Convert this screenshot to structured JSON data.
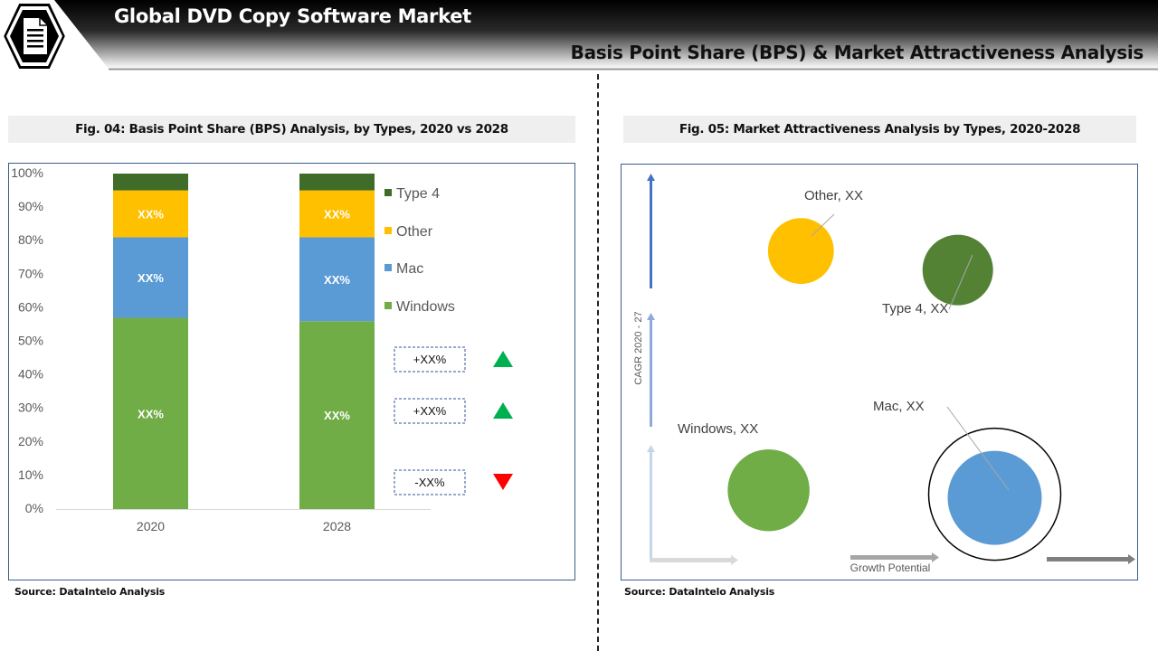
{
  "header": {
    "title": "Global DVD Copy Software Market",
    "subtitle": "Basis Point Share (BPS) & Market Attractiveness Analysis",
    "logo_icon": "document-icon"
  },
  "left": {
    "fig_title": "Fig. 04: Basis Point Share (BPS) Analysis, by Types, 2020 vs 2028",
    "source": "Source:  DataIntelo  Analysis"
  },
  "right": {
    "fig_title": "Fig. 05: Market Attractiveness Analysis by Types, 2020-2028",
    "source": "Source:  DataIntelo  Analysis"
  },
  "chart_data": [
    {
      "type": "bar",
      "stacked": true,
      "categories": [
        "2020",
        "2028"
      ],
      "ylim": [
        0,
        100
      ],
      "yticks": [
        "0%",
        "10%",
        "20%",
        "30%",
        "40%",
        "50%",
        "60%",
        "70%",
        "80%",
        "90%",
        "100%"
      ],
      "series": [
        {
          "name": "Windows",
          "color": "#70ad47",
          "values": [
            57,
            56
          ],
          "labels": [
            "XX%",
            "XX%"
          ]
        },
        {
          "name": "Mac",
          "color": "#5b9bd5",
          "values": [
            24,
            25
          ],
          "labels": [
            "XX%",
            "XX%"
          ]
        },
        {
          "name": "Other",
          "color": "#ffc000",
          "values": [
            14,
            14
          ],
          "labels": [
            "XX%",
            "XX%"
          ]
        },
        {
          "name": "Type 4",
          "color": "#3f6c28",
          "values": [
            5,
            5
          ],
          "labels": [
            "",
            ""
          ]
        }
      ],
      "legend": "right",
      "changes": [
        {
          "label": "+XX%",
          "direction": "up",
          "color": "#00b050"
        },
        {
          "label": "+XX%",
          "direction": "up",
          "color": "#00b050"
        },
        {
          "label": "-XX%",
          "direction": "down",
          "color": "#ff0000"
        }
      ]
    },
    {
      "type": "scatter",
      "subtype": "bubble",
      "xlabel": "Growth Potential",
      "ylabel": "CAGR 2020 - 27",
      "points": [
        {
          "label": "Other, XX",
          "color": "#ffc000",
          "x": 0.33,
          "y": 0.82,
          "size": 0.7
        },
        {
          "label": "Type 4, XX",
          "color": "#548235",
          "x": 0.67,
          "y": 0.77,
          "size": 0.75
        },
        {
          "label": "Windows, XX",
          "color": "#70ad47",
          "x": 0.26,
          "y": 0.19,
          "size": 0.87
        },
        {
          "label": "Mac, XX",
          "color": "#5b9bd5",
          "x": 0.75,
          "y": 0.17,
          "size": 1.0,
          "highlighted": true
        }
      ]
    }
  ]
}
